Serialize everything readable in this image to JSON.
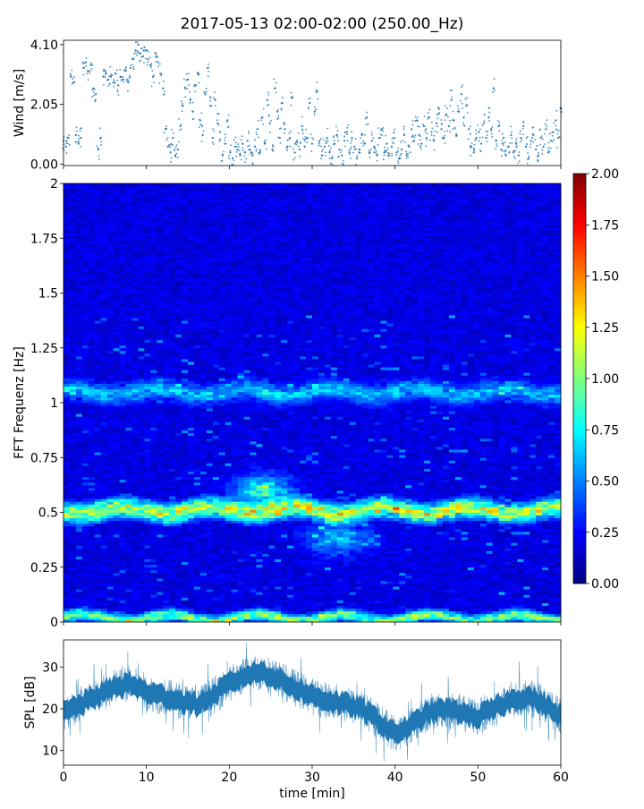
{
  "title": "2017-05-13 02:00-02:00 (250.00_Hz)",
  "chart_data": [
    {
      "id": "wind",
      "type": "scatter",
      "ylabel": "Wind [m/s]",
      "xlim": [
        0,
        60
      ],
      "ylim": [
        -0.05,
        4.25
      ],
      "yticks": [
        0.0,
        2.05,
        4.1
      ],
      "ytick_labels": [
        "0.00",
        "2.05",
        "4.10"
      ],
      "series_color": "#1f77b4",
      "points": [
        [
          0.0,
          0.8
        ],
        [
          0.3,
          0.6
        ],
        [
          0.6,
          0.9
        ],
        [
          0.9,
          3.0
        ],
        [
          1.2,
          2.8
        ],
        [
          1.5,
          1.0
        ],
        [
          1.8,
          0.7
        ],
        [
          2.1,
          0.9
        ],
        [
          2.4,
          3.3
        ],
        [
          2.7,
          3.5
        ],
        [
          3.0,
          3.2
        ],
        [
          3.3,
          3.4
        ],
        [
          3.6,
          2.6
        ],
        [
          3.9,
          2.4
        ],
        [
          4.2,
          0.5
        ],
        [
          4.5,
          0.9
        ],
        [
          4.8,
          3.0
        ],
        [
          5.1,
          3.1
        ],
        [
          5.4,
          2.9
        ],
        [
          5.7,
          3.0
        ],
        [
          6.0,
          2.8
        ],
        [
          6.3,
          3.1
        ],
        [
          6.6,
          2.7
        ],
        [
          6.9,
          3.0
        ],
        [
          7.2,
          2.9
        ],
        [
          7.5,
          3.2
        ],
        [
          7.8,
          2.8
        ],
        [
          8.1,
          3.3
        ],
        [
          8.4,
          3.6
        ],
        [
          8.7,
          3.9
        ],
        [
          9.0,
          4.1
        ],
        [
          9.3,
          3.8
        ],
        [
          9.6,
          3.7
        ],
        [
          9.9,
          3.9
        ],
        [
          10.2,
          3.6
        ],
        [
          10.5,
          3.4
        ],
        [
          10.8,
          3.0
        ],
        [
          11.1,
          3.8
        ],
        [
          11.4,
          3.5
        ],
        [
          11.7,
          3.1
        ],
        [
          12.0,
          2.6
        ],
        [
          12.3,
          1.2
        ],
        [
          12.6,
          0.6
        ],
        [
          12.9,
          0.4
        ],
        [
          13.2,
          0.9
        ],
        [
          13.5,
          0.3
        ],
        [
          13.8,
          0.5
        ],
        [
          14.1,
          1.3
        ],
        [
          14.4,
          2.0
        ],
        [
          14.7,
          2.6
        ],
        [
          15.0,
          2.9
        ],
        [
          15.3,
          2.2
        ],
        [
          15.6,
          1.8
        ],
        [
          15.9,
          2.7
        ],
        [
          16.2,
          3.1
        ],
        [
          16.5,
          1.5
        ],
        [
          16.8,
          1.0
        ],
        [
          17.1,
          2.4
        ],
        [
          17.4,
          3.3
        ],
        [
          17.7,
          2.0
        ],
        [
          18.0,
          0.9
        ],
        [
          18.3,
          2.2
        ],
        [
          18.6,
          1.4
        ],
        [
          18.9,
          1.1
        ],
        [
          19.2,
          0.3
        ],
        [
          19.5,
          0.7
        ],
        [
          19.8,
          1.5
        ],
        [
          20.1,
          0.4
        ],
        [
          20.4,
          0.2
        ],
        [
          20.7,
          0.6
        ],
        [
          21.0,
          0.5
        ],
        [
          21.3,
          0.3
        ],
        [
          21.6,
          0.7
        ],
        [
          21.9,
          0.4
        ],
        [
          22.2,
          0.8
        ],
        [
          22.5,
          0.5
        ],
        [
          22.8,
          0.3
        ],
        [
          23.1,
          0.6
        ],
        [
          23.4,
          1.2
        ],
        [
          23.7,
          0.4
        ],
        [
          24.0,
          1.6
        ],
        [
          24.3,
          0.7
        ],
        [
          24.6,
          2.2
        ],
        [
          24.9,
          1.4
        ],
        [
          25.2,
          0.5
        ],
        [
          25.5,
          2.6
        ],
        [
          25.8,
          1.8
        ],
        [
          26.1,
          0.9
        ],
        [
          26.4,
          2.1
        ],
        [
          26.7,
          1.2
        ],
        [
          27.0,
          0.6
        ],
        [
          27.3,
          0.9
        ],
        [
          27.6,
          2.3
        ],
        [
          27.9,
          0.4
        ],
        [
          28.2,
          0.8
        ],
        [
          28.5,
          0.5
        ],
        [
          28.8,
          1.3
        ],
        [
          29.1,
          0.6
        ],
        [
          29.4,
          0.9
        ],
        [
          29.7,
          2.1
        ],
        [
          30.0,
          0.7
        ],
        [
          30.3,
          1.8
        ],
        [
          30.6,
          2.5
        ],
        [
          30.9,
          0.8
        ],
        [
          31.2,
          0.3
        ],
        [
          31.5,
          0.6
        ],
        [
          31.8,
          0.9
        ],
        [
          32.1,
          0.4
        ],
        [
          32.4,
          0.2
        ],
        [
          32.7,
          0.7
        ],
        [
          33.0,
          1.0
        ],
        [
          33.3,
          0.5
        ],
        [
          33.6,
          0.3
        ],
        [
          33.9,
          0.8
        ],
        [
          34.2,
          1.1
        ],
        [
          34.5,
          0.4
        ],
        [
          34.8,
          0.9
        ],
        [
          35.1,
          0.6
        ],
        [
          35.4,
          0.2
        ],
        [
          35.7,
          0.5
        ],
        [
          36.0,
          1.0
        ],
        [
          36.3,
          0.7
        ],
        [
          36.6,
          1.6
        ],
        [
          36.9,
          0.4
        ],
        [
          37.2,
          0.8
        ],
        [
          37.5,
          0.6
        ],
        [
          37.8,
          0.3
        ],
        [
          38.1,
          0.9
        ],
        [
          38.4,
          1.2
        ],
        [
          38.7,
          0.4
        ],
        [
          39.0,
          0.7
        ],
        [
          39.3,
          0.3
        ],
        [
          39.6,
          0.6
        ],
        [
          39.9,
          0.9
        ],
        [
          40.2,
          0.4
        ],
        [
          40.5,
          0.2
        ],
        [
          40.8,
          0.5
        ],
        [
          41.1,
          1.0
        ],
        [
          41.4,
          0.3
        ],
        [
          41.7,
          0.6
        ],
        [
          42.0,
          1.2
        ],
        [
          42.3,
          0.8
        ],
        [
          42.6,
          1.5
        ],
        [
          42.9,
          1.0
        ],
        [
          43.2,
          0.7
        ],
        [
          43.5,
          1.3
        ],
        [
          43.8,
          0.9
        ],
        [
          44.1,
          1.6
        ],
        [
          44.4,
          1.1
        ],
        [
          44.7,
          0.8
        ],
        [
          45.0,
          1.4
        ],
        [
          45.3,
          1.9
        ],
        [
          45.6,
          1.2
        ],
        [
          45.9,
          0.9
        ],
        [
          46.2,
          1.7
        ],
        [
          46.5,
          1.3
        ],
        [
          46.8,
          2.2
        ],
        [
          47.1,
          1.5
        ],
        [
          47.4,
          1.0
        ],
        [
          47.7,
          1.8
        ],
        [
          48.0,
          2.4
        ],
        [
          48.3,
          1.6
        ],
        [
          48.6,
          2.0
        ],
        [
          48.9,
          1.2
        ],
        [
          49.2,
          0.6
        ],
        [
          49.5,
          0.4
        ],
        [
          49.8,
          0.9
        ],
        [
          50.1,
          1.1
        ],
        [
          50.4,
          0.7
        ],
        [
          50.7,
          1.4
        ],
        [
          51.0,
          0.9
        ],
        [
          51.3,
          1.6
        ],
        [
          51.6,
          1.2
        ],
        [
          51.9,
          2.6
        ],
        [
          52.2,
          0.8
        ],
        [
          52.5,
          1.3
        ],
        [
          52.8,
          0.5
        ],
        [
          53.1,
          0.9
        ],
        [
          53.4,
          0.3
        ],
        [
          53.7,
          0.6
        ],
        [
          54.0,
          1.0
        ],
        [
          54.3,
          0.4
        ],
        [
          54.6,
          0.7
        ],
        [
          54.9,
          0.3
        ],
        [
          55.2,
          0.9
        ],
        [
          55.5,
          1.3
        ],
        [
          55.8,
          0.6
        ],
        [
          56.1,
          0.2
        ],
        [
          56.4,
          0.8
        ],
        [
          56.7,
          1.0
        ],
        [
          57.0,
          0.5
        ],
        [
          57.3,
          0.3
        ],
        [
          57.6,
          0.9
        ],
        [
          57.9,
          0.6
        ],
        [
          58.2,
          1.2
        ],
        [
          58.5,
          0.4
        ],
        [
          58.8,
          0.8
        ],
        [
          59.1,
          1.1
        ],
        [
          59.4,
          1.5
        ],
        [
          59.7,
          0.9
        ],
        [
          60.0,
          1.9
        ]
      ]
    },
    {
      "id": "spectrogram",
      "type": "heatmap",
      "ylabel": "FFT Frequenz [Hz]",
      "xlim": [
        0,
        60
      ],
      "ylim": [
        0,
        2
      ],
      "yticks": [
        0,
        0.25,
        0.5,
        0.75,
        1,
        1.25,
        1.5,
        1.75,
        2
      ],
      "ytick_labels": [
        "0",
        "0.25",
        "0.5",
        "0.75",
        "1",
        "1.25",
        "1.5",
        "1.75",
        "2"
      ],
      "colormap": "jet",
      "colorbar": {
        "range": [
          0.0,
          2.0
        ],
        "ticks": [
          "0.00",
          "0.25",
          "0.50",
          "0.75",
          "1.00",
          "1.25",
          "1.50",
          "1.75",
          "2.00"
        ]
      },
      "features": [
        {
          "type": "band",
          "freq": 0.51,
          "t_range": [
            0,
            60
          ],
          "level": 1.1
        },
        {
          "type": "band",
          "freq": 0.02,
          "t_range": [
            0,
            60
          ],
          "level": 0.9
        },
        {
          "type": "band",
          "freq": 1.05,
          "t_range": [
            0,
            60
          ],
          "level": 0.5
        },
        {
          "type": "spot",
          "t": 24,
          "freq": 0.6,
          "level": 0.8
        },
        {
          "type": "spot",
          "t": 33,
          "freq": 0.38,
          "level": 0.6
        }
      ]
    },
    {
      "id": "spl",
      "type": "line",
      "ylabel": "SPL [dB]",
      "xlabel": "time [min]",
      "xlim": [
        0,
        60
      ],
      "ylim": [
        6.5,
        36.5
      ],
      "yticks": [
        10,
        20,
        30
      ],
      "ytick_labels": [
        "10",
        "20",
        "30"
      ],
      "xticks": [
        0,
        10,
        20,
        30,
        40,
        50,
        60
      ],
      "xtick_labels": [
        "0",
        "10",
        "20",
        "30",
        "40",
        "50",
        "60"
      ],
      "series_color": "#1f77b4",
      "x": [
        0,
        2,
        4,
        6,
        8,
        10,
        12,
        14,
        16,
        18,
        20,
        22,
        24,
        26,
        28,
        30,
        32,
        34,
        36,
        38,
        40,
        42,
        44,
        46,
        48,
        50,
        52,
        54,
        56,
        58,
        60
      ],
      "values": [
        19,
        21,
        23,
        25,
        26,
        24,
        23,
        22,
        21,
        23,
        26,
        28,
        29,
        27,
        25,
        23,
        22,
        21,
        20,
        17,
        14,
        16,
        19,
        20,
        19,
        18,
        20,
        22,
        23,
        21,
        18
      ]
    }
  ]
}
